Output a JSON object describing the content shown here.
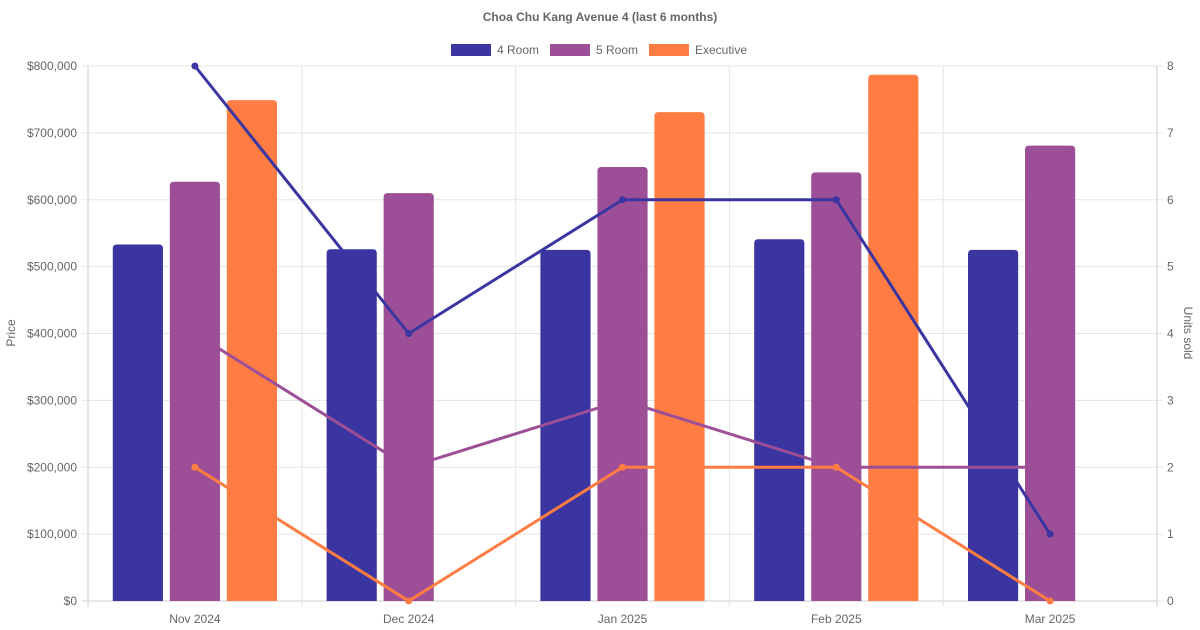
{
  "chart_data": {
    "type": "bar",
    "title": "Choa Chu Kang Avenue 4 (last 6 months)",
    "categories": [
      "Nov 2024",
      "Dec 2024",
      "Jan 2025",
      "Feb 2025",
      "Mar 2025"
    ],
    "ylabel_left": "Price",
    "ylabel_right": "Units sold",
    "ylim_left": [
      0,
      800000
    ],
    "ylim_right": [
      0,
      8
    ],
    "left_ticks": [
      "$0",
      "$100,000",
      "$200,000",
      "$300,000",
      "$400,000",
      "$500,000",
      "$600,000",
      "$700,000",
      "$800,000"
    ],
    "right_ticks": [
      "0",
      "1",
      "2",
      "3",
      "4",
      "5",
      "6",
      "7",
      "8"
    ],
    "grid": true,
    "legend_position": "top",
    "legend": [
      "4 Room",
      "5 Room",
      "Executive"
    ],
    "bar_series": [
      {
        "name": "4 Room",
        "color": "#3a35a0",
        "values": [
          533000,
          526000,
          525000,
          541000,
          525000
        ]
      },
      {
        "name": "5 Room",
        "color": "#9c4f96",
        "values": [
          627000,
          610000,
          649000,
          641000,
          681000
        ]
      },
      {
        "name": "Executive",
        "color": "#ff7c43",
        "values": [
          749000,
          null,
          731000,
          787000,
          null
        ]
      }
    ],
    "line_series": [
      {
        "name": "4 Room units sold",
        "color": "#3a35a0",
        "values": [
          8,
          4,
          6,
          6,
          1
        ]
      },
      {
        "name": "5 Room units sold",
        "color": "#9c4f96",
        "values": [
          4,
          2,
          3,
          2,
          2
        ]
      },
      {
        "name": "Executive units sold",
        "color": "#ff7c43",
        "values": [
          2,
          0,
          2,
          2,
          0
        ]
      }
    ]
  }
}
